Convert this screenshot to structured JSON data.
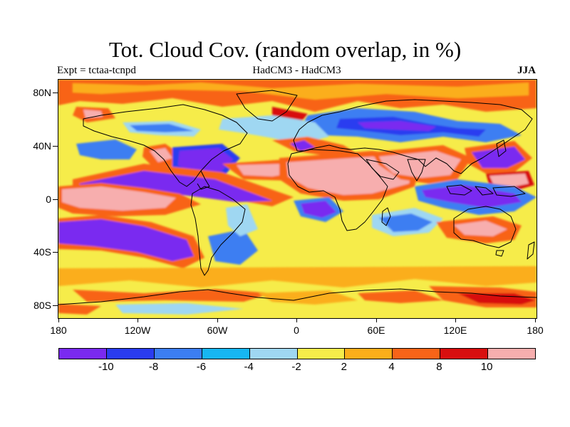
{
  "title": "Tot. Cloud Cov. (random overlap, in %)",
  "experiment_label": "Expt = tctaa-tcnpd",
  "model_label": "HadCM3 - HadCM3",
  "season_label": "JJA",
  "map": {
    "projection": "cylindrical equidistant",
    "lat_labels": [
      "80N",
      "40N",
      "0",
      "40S",
      "80S"
    ],
    "lon_labels": [
      "180",
      "120W",
      "60W",
      "0",
      "60E",
      "120E",
      "180"
    ],
    "ocean_base_color": "#f6ec4a",
    "coastline_color": "#000000"
  },
  "colorbar": {
    "colors": [
      "#7a2af0",
      "#2a3cf0",
      "#3c7ef2",
      "#17b6f2",
      "#9fd7f2",
      "#f6ec4a",
      "#fbae1a",
      "#f86418",
      "#d80f10",
      "#f7aeae"
    ],
    "labels": [
      "-10",
      "-8",
      "-6",
      "-4",
      "-2",
      "2",
      "4",
      "8",
      "10"
    ]
  }
}
